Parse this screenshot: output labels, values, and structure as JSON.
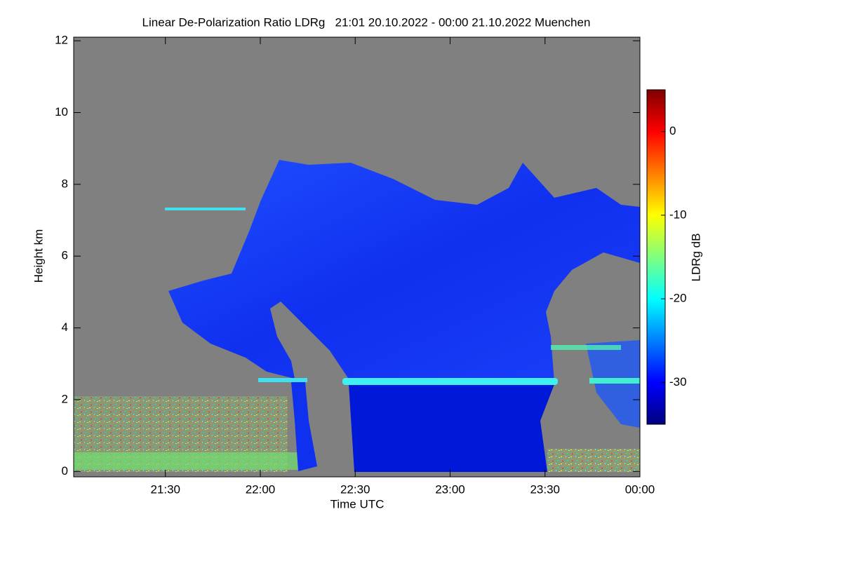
{
  "chart_data": {
    "type": "heatmap",
    "title": "Linear De-Polarization Ratio LDRg   21:01 20.10.2022 - 00:00 21.10.2022 Muenchen",
    "xlabel": "Time UTC",
    "ylabel": "Height km",
    "xlim": [
      21.0167,
      24
    ],
    "xticks": [
      {
        "value": 21.5,
        "label": "21:30"
      },
      {
        "value": 22,
        "label": "22:00"
      },
      {
        "value": 22.5,
        "label": "22:30"
      },
      {
        "value": 23,
        "label": "23:00"
      },
      {
        "value": 23.5,
        "label": "23:30"
      },
      {
        "value": 24,
        "label": "00:00"
      }
    ],
    "ylim": [
      -0.15,
      12.1
    ],
    "yticks": [
      0,
      2,
      4,
      6,
      8,
      10,
      12
    ],
    "colorbar": {
      "label": "LDRg dB",
      "lim": [
        -35,
        5
      ],
      "ticks": [
        0,
        -10,
        -20,
        -30
      ],
      "colors": [
        "#00007f",
        "#0000ff",
        "#007fff",
        "#00ffff",
        "#7fff7f",
        "#ffff00",
        "#ff7f00",
        "#ff0000",
        "#7f0000"
      ]
    },
    "background": "#808080"
  }
}
